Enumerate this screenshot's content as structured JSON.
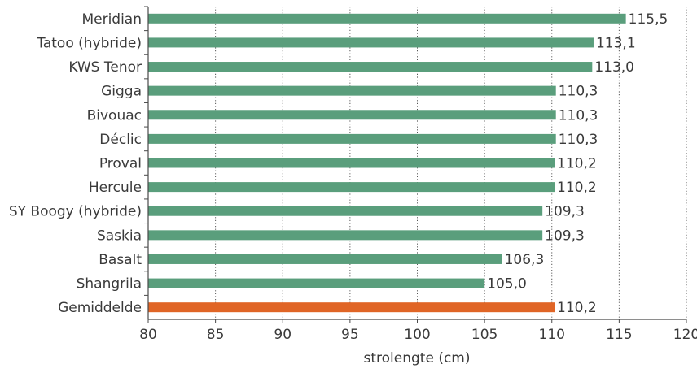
{
  "chart_data": {
    "type": "bar",
    "orientation": "horizontal",
    "categories": [
      "Meridian",
      "Tatoo (hybride)",
      "KWS Tenor",
      "Gigga",
      "Bivouac",
      "Déclic",
      "Proval",
      "Hercule",
      "SY Boogy (hybride)",
      "Saskia",
      "Basalt",
      "Shangrila",
      "Gemiddelde"
    ],
    "values": [
      115.5,
      113.1,
      113.0,
      110.3,
      110.3,
      110.3,
      110.2,
      110.2,
      109.3,
      109.3,
      106.3,
      105.0,
      110.2
    ],
    "value_labels": [
      "115,5",
      "113,1",
      "113,0",
      "110,3",
      "110,3",
      "110,3",
      "110,2",
      "110,2",
      "109,3",
      "109,3",
      "106,3",
      "105,0",
      "110,2"
    ],
    "xlabel": "strolengte (cm)",
    "ylabel": "",
    "xlim": [
      80,
      120
    ],
    "xticks": [
      80,
      85,
      90,
      95,
      100,
      105,
      110,
      115,
      120
    ],
    "grid": "vertical dotted",
    "colors": {
      "bar": "#5a9e7c",
      "highlight_bar": "#e06526",
      "axis": "#4a4a4a",
      "grid": "#555555",
      "text": "#3a3a3a"
    },
    "highlight_category": "Gemiddelde"
  }
}
